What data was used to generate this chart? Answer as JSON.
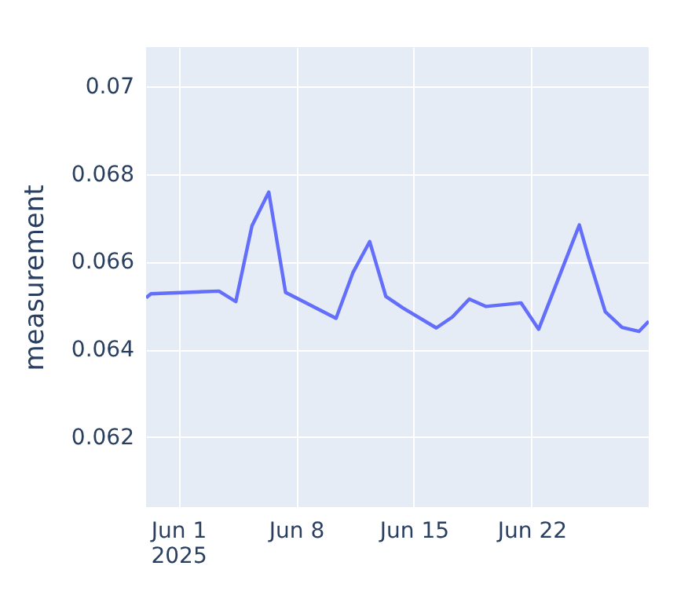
{
  "chart_data": {
    "type": "line",
    "ylabel": "measurement",
    "x": [
      "2025-05-30T02:00",
      "2025-05-30T09:00",
      "2025-06-03T10:00",
      "2025-06-04T10:00",
      "2025-06-05T09:00",
      "2025-06-06T09:00",
      "2025-06-07T09:00",
      "2025-06-10T09:00",
      "2025-06-11T09:00",
      "2025-06-12T09:00",
      "2025-06-13T08:00",
      "2025-06-14T08:00",
      "2025-06-16T08:00",
      "2025-06-17T07:00",
      "2025-06-18T07:00",
      "2025-06-19T07:00",
      "2025-06-21T09:00",
      "2025-06-22T10:00",
      "2025-06-24T20:00",
      "2025-06-25T09:00",
      "2025-06-26T09:00",
      "2025-06-27T09:00",
      "2025-06-28T09:00",
      "2025-06-28T23:00"
    ],
    "series": [
      {
        "color": "#636efa",
        "values": [
          0.06518,
          0.06527,
          0.06533,
          0.06509,
          0.06682,
          0.06759,
          0.0653,
          0.06471,
          0.06575,
          0.06646,
          0.06521,
          0.06495,
          0.06449,
          0.06474,
          0.06515,
          0.06498,
          0.06506,
          0.06446,
          0.06684,
          0.06611,
          0.06486,
          0.0645,
          0.06441,
          0.06464
        ]
      }
    ],
    "xlim": [
      "2025-05-30T02:00",
      "2025-06-28T23:00"
    ],
    "xticks": [
      {
        "value": "2025-06-01",
        "label": "Jun 1\n2025"
      },
      {
        "value": "2025-06-08",
        "label": "Jun 8"
      },
      {
        "value": "2025-06-15",
        "label": "Jun 15"
      },
      {
        "value": "2025-06-22",
        "label": "Jun 22"
      }
    ],
    "ylim": [
      0.0604,
      0.0709
    ],
    "yticks": [
      0.062,
      0.064,
      0.066,
      0.068,
      0.07
    ],
    "grid": true,
    "marker": "none",
    "line_style": "solid"
  }
}
